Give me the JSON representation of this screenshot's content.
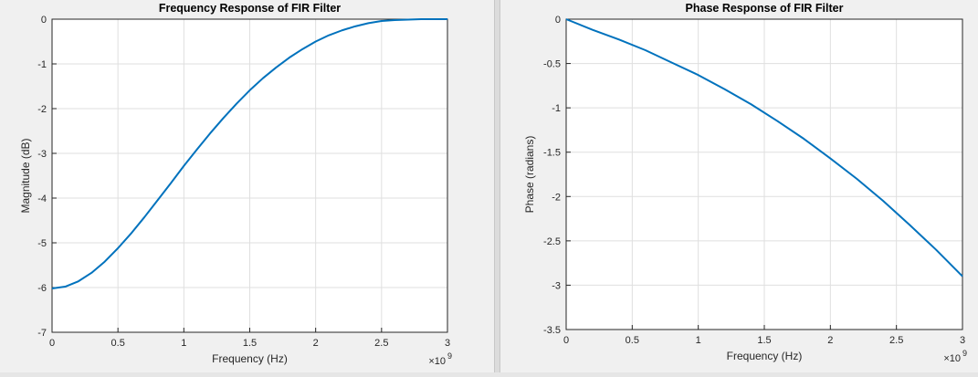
{
  "chart_data": [
    {
      "type": "line",
      "title": "Frequency Response of FIR Filter",
      "xlabel": "Frequency (Hz)",
      "ylabel": "Magnitude (dB)",
      "x_exponent": "×10",
      "x_exponent_power": "9",
      "xlim": [
        0,
        3
      ],
      "ylim": [
        -7,
        0
      ],
      "xticks": [
        0,
        0.5,
        1,
        1.5,
        2,
        2.5,
        3
      ],
      "yticks": [
        -7,
        -6,
        -5,
        -4,
        -3,
        -2,
        -1,
        0
      ],
      "grid": true,
      "color": "#0072bd",
      "series": [
        {
          "x": [
            0,
            0.1,
            0.2,
            0.3,
            0.4,
            0.5,
            0.6,
            0.7,
            0.8,
            0.9,
            1.0,
            1.1,
            1.2,
            1.3,
            1.4,
            1.5,
            1.6,
            1.7,
            1.8,
            1.9,
            2.0,
            2.1,
            2.2,
            2.3,
            2.4,
            2.5,
            2.6,
            2.7,
            2.8,
            2.9,
            3.0
          ],
          "values": [
            -6.02,
            -5.98,
            -5.86,
            -5.67,
            -5.42,
            -5.12,
            -4.79,
            -4.43,
            -4.05,
            -3.67,
            -3.28,
            -2.91,
            -2.55,
            -2.21,
            -1.89,
            -1.59,
            -1.32,
            -1.08,
            -0.86,
            -0.67,
            -0.5,
            -0.36,
            -0.25,
            -0.16,
            -0.09,
            -0.04,
            -0.02,
            -0.01,
            0.0,
            0.0,
            0.0
          ]
        }
      ]
    },
    {
      "type": "line",
      "title": "Phase Response of FIR Filter",
      "xlabel": "Frequency (Hz)",
      "ylabel": "Phase (radians)",
      "x_exponent": "×10",
      "x_exponent_power": "9",
      "xlim": [
        0,
        3
      ],
      "ylim": [
        -3.5,
        0
      ],
      "xticks": [
        0,
        0.5,
        1,
        1.5,
        2,
        2.5,
        3
      ],
      "yticks": [
        -3.5,
        -3,
        -2.5,
        -2,
        -1.5,
        -1,
        -0.5,
        0
      ],
      "grid": true,
      "color": "#0072bd",
      "series": [
        {
          "x": [
            0,
            0.2,
            0.4,
            0.6,
            0.8,
            1.0,
            1.2,
            1.4,
            1.6,
            1.8,
            2.0,
            2.2,
            2.4,
            2.6,
            2.8,
            3.0
          ],
          "values": [
            0,
            -0.12,
            -0.23,
            -0.35,
            -0.49,
            -0.63,
            -0.79,
            -0.96,
            -1.15,
            -1.35,
            -1.57,
            -1.8,
            -2.05,
            -2.32,
            -2.6,
            -2.9
          ]
        }
      ]
    }
  ]
}
